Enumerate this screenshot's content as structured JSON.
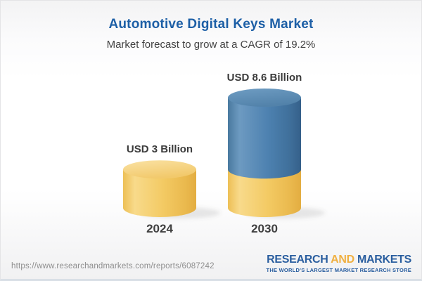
{
  "header": {
    "title": "Automotive Digital Keys Market",
    "subtitle": "Market forecast to grow at a CAGR of 19.2%",
    "title_color": "#1d5fa6"
  },
  "chart_data": {
    "type": "bar",
    "subtype": "3d-cylinder",
    "categories": [
      "2024",
      "2030"
    ],
    "values": [
      3,
      8.6
    ],
    "unit": "USD Billion",
    "value_labels": [
      "USD 3 Billion",
      "USD 8.6 Billion"
    ],
    "cagr_percent": 19.2,
    "legend": "none",
    "grid": "off",
    "colors": {
      "gold": "#f3c965",
      "blue": "#4b80ae"
    },
    "note": "2030 cylinder is stacked: gold base segment equals the 2024 value (3), blue remainder equals 5.6",
    "bars": [
      {
        "category": "2024",
        "label": "USD 3 Billion",
        "segments": [
          {
            "value": 3,
            "color": "gold"
          }
        ]
      },
      {
        "category": "2030",
        "label": "USD 8.6 Billion",
        "segments": [
          {
            "value": 3,
            "color": "gold"
          },
          {
            "value": 5.6,
            "color": "blue"
          }
        ]
      }
    ]
  },
  "footer": {
    "url": "https://www.researchandmarkets.com/reports/6087242",
    "logo": {
      "part1": "RESEARCH",
      "part2": "AND",
      "part3": "MARKETS",
      "tagline": "THE WORLD'S LARGEST MARKET RESEARCH STORE",
      "blue": "#2a5e9f",
      "gold": "#f0b041"
    }
  }
}
